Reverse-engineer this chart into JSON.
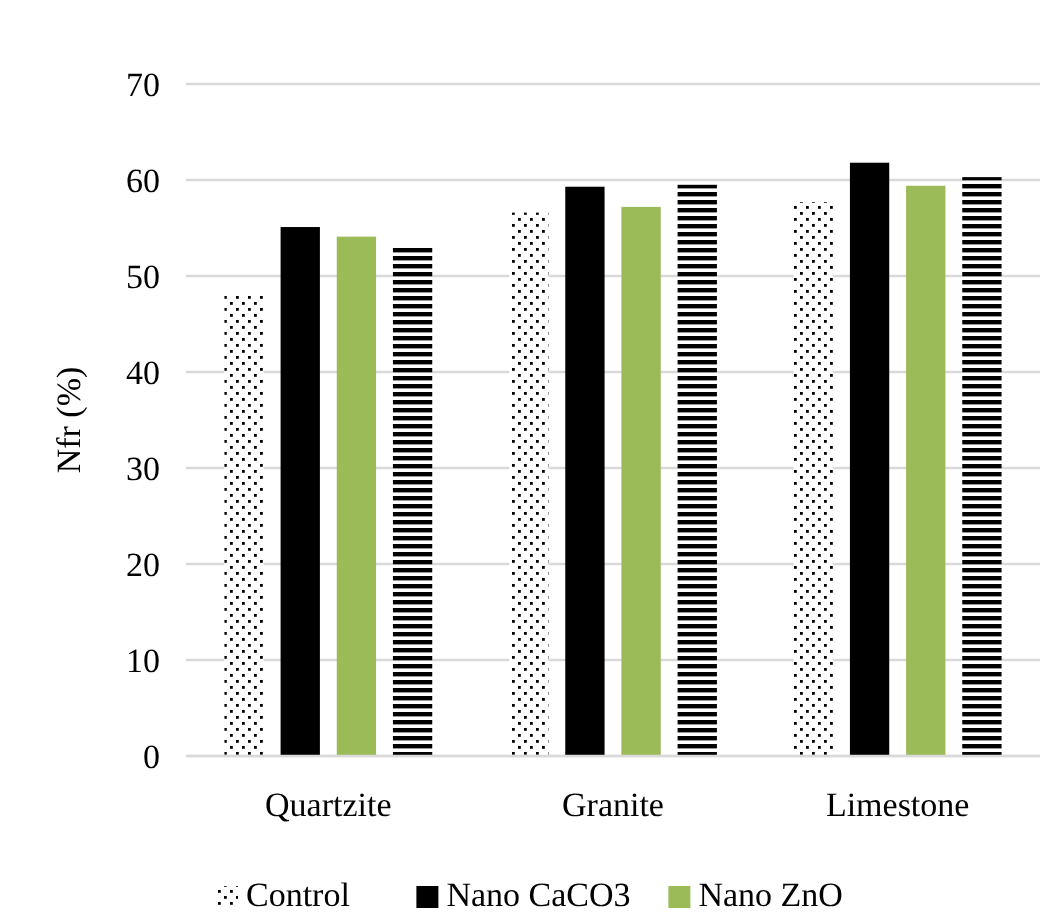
{
  "chart_data": {
    "type": "bar",
    "ylabel": "Nfr (%)",
    "categories": [
      "Quartzite",
      "Granite",
      "Limestone"
    ],
    "series": [
      {
        "name": "Control",
        "color": "#000000",
        "values": [
          48,
          56.6,
          57.7
        ]
      },
      {
        "name": "Nano CaCO3",
        "color": "#000000",
        "values": [
          55.1,
          59.3,
          61.8
        ]
      },
      {
        "name": "Nano ZnO",
        "color": "#9bbb59",
        "values": [
          54.1,
          57.2,
          59.4
        ]
      },
      {
        "color": "#000000",
        "values": [
          53.1,
          59.5,
          60.3
        ]
      }
    ],
    "ylim": [
      0,
      70
    ],
    "yticks": [
      0,
      10,
      20,
      30,
      40,
      50,
      60,
      70
    ],
    "grid": "y",
    "legend": "bottom"
  }
}
